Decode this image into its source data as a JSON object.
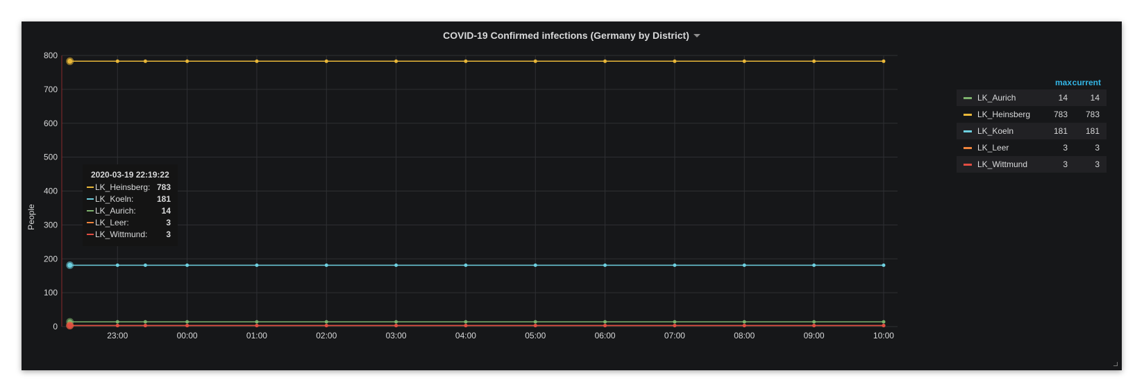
{
  "panel": {
    "title": "COVID-19 Confirmed infections (Germany by District)"
  },
  "chart_data": {
    "type": "line",
    "title": "COVID-19 Confirmed infections (Germany by District)",
    "ylabel": "People",
    "xlabel": "",
    "ylim": [
      0,
      800
    ],
    "yticks": [
      0,
      100,
      200,
      300,
      400,
      500,
      600,
      700,
      800
    ],
    "grid": true,
    "legend_placement": "right",
    "x_tick_labels": [
      "23:00",
      "00:00",
      "01:00",
      "02:00",
      "03:00",
      "04:00",
      "05:00",
      "06:00",
      "07:00",
      "08:00",
      "09:00",
      "10:00"
    ],
    "x": [
      "22:19",
      "23:00",
      "23:24",
      "00:00",
      "01:00",
      "02:00",
      "03:00",
      "04:00",
      "05:00",
      "06:00",
      "07:00",
      "08:00",
      "09:00",
      "10:00"
    ],
    "xlim": [
      "22:12",
      "10:12"
    ],
    "series": [
      {
        "name": "LK_Aurich",
        "color": "#7eb26d",
        "values": [
          14,
          14,
          14,
          14,
          14,
          14,
          14,
          14,
          14,
          14,
          14,
          14,
          14,
          14
        ]
      },
      {
        "name": "LK_Heinsberg",
        "color": "#eab839",
        "values": [
          783,
          783,
          783,
          783,
          783,
          783,
          783,
          783,
          783,
          783,
          783,
          783,
          783,
          783
        ]
      },
      {
        "name": "LK_Koeln",
        "color": "#6ed0e0",
        "values": [
          181,
          181,
          181,
          181,
          181,
          181,
          181,
          181,
          181,
          181,
          181,
          181,
          181,
          181
        ]
      },
      {
        "name": "LK_Leer",
        "color": "#ef843c",
        "values": [
          3,
          3,
          3,
          3,
          3,
          3,
          3,
          3,
          3,
          3,
          3,
          3,
          3,
          3
        ]
      },
      {
        "name": "LK_Wittmund",
        "color": "#e24d42",
        "values": [
          3,
          3,
          3,
          3,
          3,
          3,
          3,
          3,
          3,
          3,
          3,
          3,
          3,
          3
        ]
      }
    ]
  },
  "legend": {
    "headers": {
      "max": "max",
      "current": "current"
    },
    "rows": [
      {
        "name": "LK_Aurich",
        "color": "#7eb26d",
        "max": "14",
        "current": "14"
      },
      {
        "name": "LK_Heinsberg",
        "color": "#eab839",
        "max": "783",
        "current": "783"
      },
      {
        "name": "LK_Koeln",
        "color": "#6ed0e0",
        "max": "181",
        "current": "181"
      },
      {
        "name": "LK_Leer",
        "color": "#ef843c",
        "max": "3",
        "current": "3"
      },
      {
        "name": "LK_Wittmund",
        "color": "#e24d42",
        "max": "3",
        "current": "3"
      }
    ]
  },
  "tooltip": {
    "time": "2020-03-19 22:19:22",
    "rows": [
      {
        "name": "LK_Heinsberg:",
        "color": "#eab839",
        "value": "783"
      },
      {
        "name": "LK_Koeln:",
        "color": "#6ed0e0",
        "value": "181"
      },
      {
        "name": "LK_Aurich:",
        "color": "#7eb26d",
        "value": "14"
      },
      {
        "name": "LK_Leer:",
        "color": "#ef843c",
        "value": "3"
      },
      {
        "name": "LK_Wittmund:",
        "color": "#e24d42",
        "value": "3"
      }
    ]
  }
}
